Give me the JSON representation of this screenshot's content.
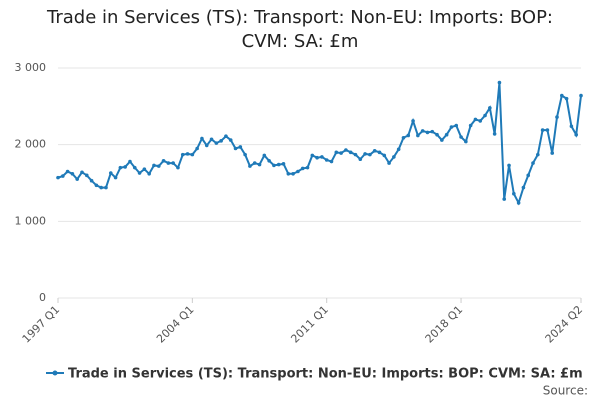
{
  "chart_data": {
    "type": "line",
    "title": "Trade in Services (TS): Transport: Non-EU: Imports: BOP: CVM: SA: £m",
    "source": "Source:",
    "categories": [
      "1997 Q1",
      null,
      null,
      null,
      null,
      null,
      null,
      null,
      null,
      null,
      null,
      null,
      null,
      null,
      null,
      null,
      null,
      null,
      null,
      null,
      null,
      null,
      null,
      null,
      null,
      null,
      null,
      null,
      "2004 Q1",
      null,
      null,
      null,
      null,
      null,
      null,
      null,
      null,
      null,
      null,
      null,
      null,
      null,
      null,
      null,
      null,
      null,
      null,
      null,
      null,
      null,
      null,
      null,
      null,
      null,
      null,
      null,
      "2011 Q1",
      null,
      null,
      null,
      null,
      null,
      null,
      null,
      null,
      null,
      null,
      null,
      null,
      null,
      null,
      null,
      null,
      null,
      null,
      null,
      null,
      null,
      null,
      null,
      null,
      null,
      null,
      null,
      "2018 Q1",
      null,
      null,
      null,
      null,
      null,
      null,
      null,
      null,
      null,
      null,
      null,
      null,
      null,
      null,
      null,
      null,
      null,
      null,
      null,
      null,
      null,
      null,
      null,
      null,
      "2024 Q2"
    ],
    "series": [
      {
        "name": "Trade in Services (TS): Transport: Non-EU: Imports: BOP: CVM: SA: £m",
        "color": "#1f7ab8",
        "values": [
          1570,
          1590,
          1650,
          1620,
          1550,
          1640,
          1600,
          1530,
          1470,
          1440,
          1440,
          1630,
          1570,
          1700,
          1710,
          1780,
          1700,
          1630,
          1680,
          1620,
          1730,
          1720,
          1790,
          1760,
          1760,
          1700,
          1870,
          1880,
          1870,
          1950,
          2080,
          1990,
          2070,
          2020,
          2050,
          2110,
          2060,
          1950,
          1970,
          1870,
          1720,
          1760,
          1740,
          1860,
          1790,
          1730,
          1740,
          1750,
          1620,
          1620,
          1650,
          1690,
          1700,
          1860,
          1830,
          1840,
          1800,
          1780,
          1900,
          1890,
          1930,
          1900,
          1870,
          1810,
          1880,
          1870,
          1920,
          1900,
          1860,
          1760,
          1840,
          1940,
          2090,
          2120,
          2310,
          2120,
          2180,
          2160,
          2170,
          2130,
          2060,
          2130,
          2230,
          2250,
          2100,
          2040,
          2250,
          2330,
          2310,
          2380,
          2480,
          2140,
          2810,
          1290,
          1730,
          1360,
          1240,
          1440,
          1600,
          1760,
          1870,
          2190,
          2190,
          1890,
          2360,
          2640,
          2600,
          2240,
          2130,
          2640
        ]
      }
    ],
    "ylim": [
      0,
      3000
    ],
    "yticks": [
      0,
      {
        "value": 1000,
        "label": "1 000"
      },
      {
        "value": 2000,
        "label": "2 000"
      },
      {
        "value": 3000,
        "label": "3 000"
      }
    ],
    "grid": true
  }
}
